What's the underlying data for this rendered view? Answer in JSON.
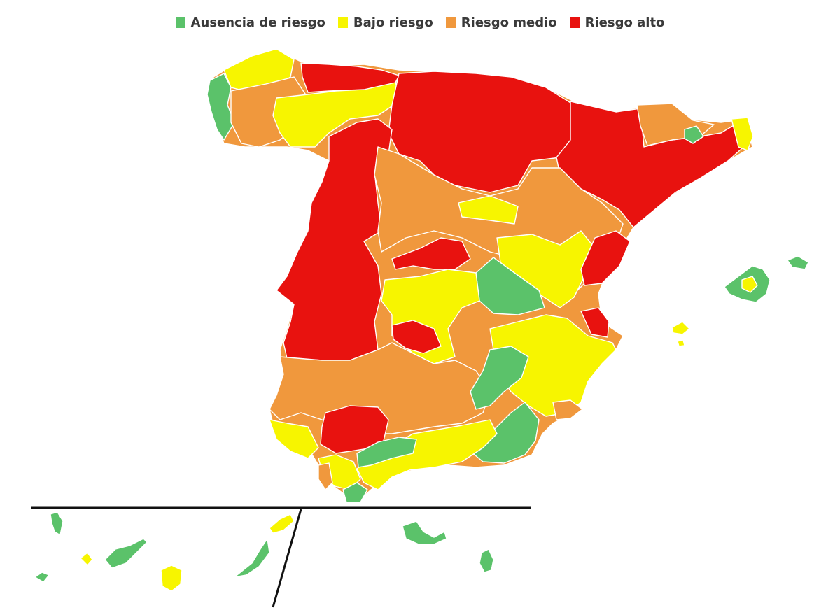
{
  "legend": {
    "items": [
      {
        "key": "none",
        "label": "Ausencia de riesgo",
        "color": "#5bc26a"
      },
      {
        "key": "low",
        "label": "Bajo riesgo",
        "color": "#f7f500"
      },
      {
        "key": "medium",
        "label": "Riesgo medio",
        "color": "#f0983d"
      },
      {
        "key": "high",
        "label": "Riesgo alto",
        "color": "#e8120f"
      }
    ]
  },
  "map": {
    "colors": {
      "none": "#5bc26a",
      "low": "#f7f500",
      "medium": "#f0983d",
      "high": "#e8120f",
      "divider": "#111111"
    }
  }
}
